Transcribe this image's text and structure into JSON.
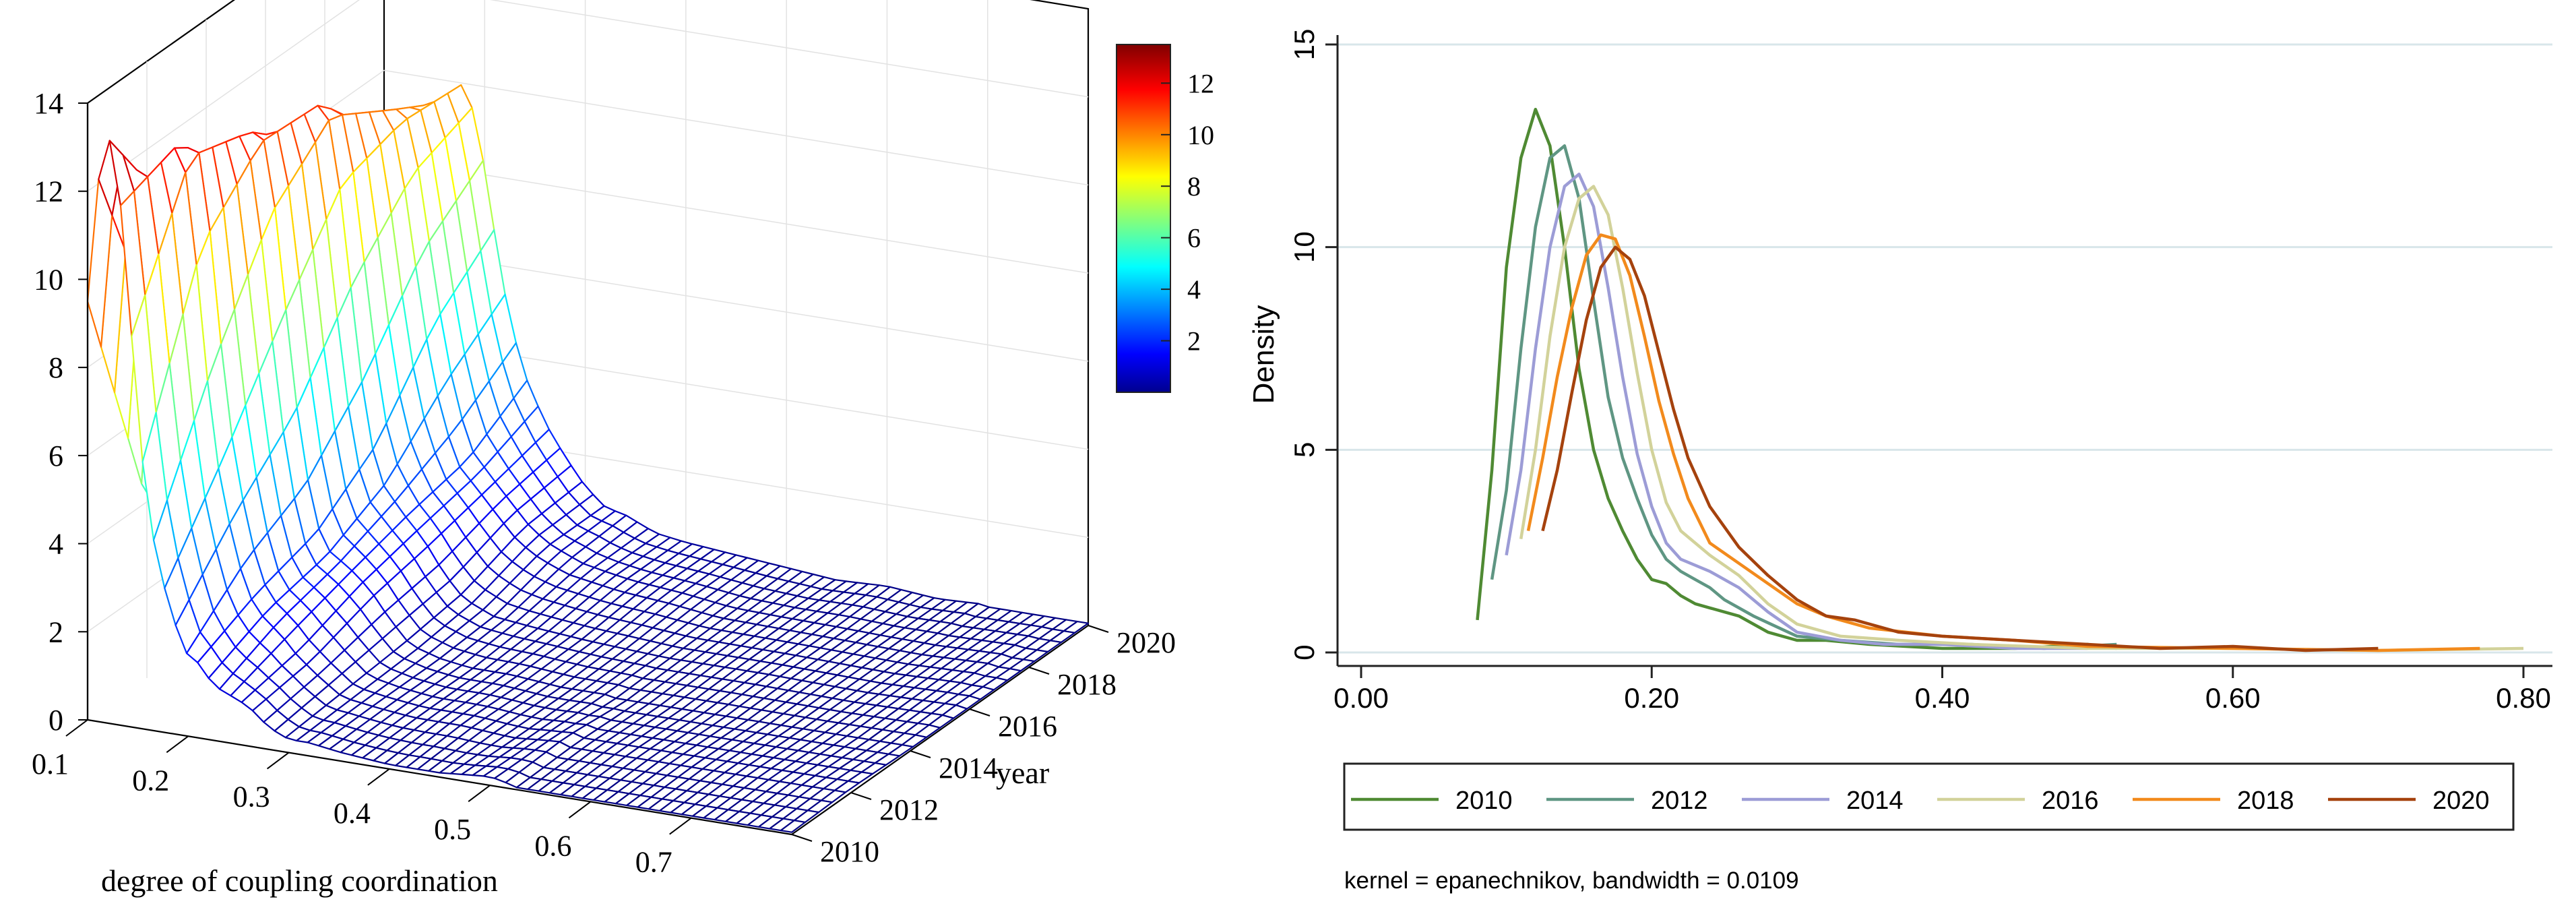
{
  "chart_data": [
    {
      "type": "surface3d",
      "title": "",
      "xlabel": "degree of coupling coordination",
      "ylabel": "year",
      "zlabel": "",
      "x_ticks": [
        "0.1",
        "0.2",
        "0.3",
        "0.4",
        "0.5",
        "0.6",
        "0.7"
      ],
      "y_ticks": [
        "2010",
        "2012",
        "2014",
        "2016",
        "2018",
        "2020"
      ],
      "z_ticks": [
        "0",
        "2",
        "4",
        "6",
        "8",
        "10",
        "12",
        "14"
      ],
      "xlim": [
        0.1,
        0.8
      ],
      "ylim": [
        2010,
        2020
      ],
      "zlim": [
        0,
        14
      ],
      "years": [
        2010,
        2012,
        2014,
        2016,
        2018,
        2020
      ],
      "colorbar": {
        "ticks": [
          "2",
          "4",
          "6",
          "8",
          "10",
          "12"
        ],
        "range": [
          0,
          13.5
        ],
        "colormap": "jet"
      },
      "surface_source": "smoothed kernel densities per year, interpolated between the curves of chart 2"
    },
    {
      "type": "line",
      "title": "",
      "xlabel": "",
      "ylabel": "Density",
      "x_ticks": [
        "0.00",
        "0.20",
        "0.40",
        "0.60",
        "0.80"
      ],
      "y_ticks": [
        "0",
        "5",
        "10",
        "15"
      ],
      "xlim": [
        0,
        0.8
      ],
      "ylim": [
        0,
        15
      ],
      "grid": true,
      "legend_position": "bottom",
      "note": "kernel = epanechnikov, bandwidth = 0.0109",
      "series": [
        {
          "name": "2010",
          "color": "#4f8a33",
          "x": [
            0.08,
            0.09,
            0.1,
            0.11,
            0.12,
            0.13,
            0.14,
            0.15,
            0.16,
            0.17,
            0.18,
            0.19,
            0.2,
            0.21,
            0.22,
            0.23,
            0.24,
            0.26,
            0.28,
            0.3,
            0.32,
            0.35,
            0.4,
            0.45,
            0.5,
            0.52
          ],
          "y": [
            0.8,
            4.5,
            9.5,
            12.2,
            13.4,
            12.5,
            10.0,
            7.0,
            5.0,
            3.8,
            3.0,
            2.3,
            1.8,
            1.7,
            1.4,
            1.2,
            1.1,
            0.9,
            0.5,
            0.3,
            0.3,
            0.2,
            0.1,
            0.1,
            0.2,
            0.1
          ]
        },
        {
          "name": "2012",
          "color": "#5f9683",
          "x": [
            0.09,
            0.1,
            0.11,
            0.12,
            0.13,
            0.14,
            0.15,
            0.16,
            0.17,
            0.18,
            0.19,
            0.2,
            0.21,
            0.22,
            0.23,
            0.24,
            0.25,
            0.27,
            0.3,
            0.33,
            0.37,
            0.42,
            0.47,
            0.52
          ],
          "y": [
            1.8,
            4.0,
            7.5,
            10.5,
            12.2,
            12.5,
            11.2,
            8.7,
            6.3,
            4.8,
            3.8,
            2.9,
            2.3,
            2.0,
            1.8,
            1.6,
            1.3,
            0.9,
            0.4,
            0.3,
            0.2,
            0.2,
            0.1,
            0.2
          ]
        },
        {
          "name": "2014",
          "color": "#9c9cd6",
          "x": [
            0.1,
            0.11,
            0.12,
            0.13,
            0.14,
            0.15,
            0.16,
            0.17,
            0.18,
            0.19,
            0.2,
            0.21,
            0.22,
            0.24,
            0.26,
            0.28,
            0.3,
            0.33,
            0.36,
            0.4,
            0.45,
            0.5
          ],
          "y": [
            2.4,
            4.5,
            7.5,
            10.0,
            11.5,
            11.8,
            11.0,
            9.0,
            6.8,
            4.9,
            3.6,
            2.7,
            2.3,
            2.0,
            1.6,
            1.0,
            0.5,
            0.3,
            0.2,
            0.2,
            0.1,
            0.1
          ]
        },
        {
          "name": "2016",
          "color": "#d2d29a",
          "x": [
            0.11,
            0.12,
            0.13,
            0.14,
            0.15,
            0.16,
            0.17,
            0.18,
            0.19,
            0.2,
            0.21,
            0.22,
            0.24,
            0.26,
            0.28,
            0.3,
            0.33,
            0.37,
            0.42,
            0.5,
            0.6,
            0.7,
            0.8
          ],
          "y": [
            2.8,
            5.0,
            7.8,
            10.0,
            11.2,
            11.5,
            10.8,
            9.0,
            6.9,
            5.0,
            3.7,
            3.0,
            2.4,
            1.9,
            1.2,
            0.7,
            0.4,
            0.3,
            0.2,
            0.1,
            0.1,
            0.05,
            0.1
          ]
        },
        {
          "name": "2018",
          "color": "#f28a1c",
          "x": [
            0.115,
            0.125,
            0.135,
            0.145,
            0.155,
            0.165,
            0.175,
            0.185,
            0.195,
            0.205,
            0.215,
            0.225,
            0.24,
            0.26,
            0.28,
            0.3,
            0.32,
            0.35,
            0.4,
            0.45,
            0.5,
            0.6,
            0.7,
            0.77
          ],
          "y": [
            3.0,
            4.8,
            6.8,
            8.5,
            9.8,
            10.3,
            10.2,
            9.3,
            7.8,
            6.2,
            4.9,
            3.8,
            2.7,
            2.2,
            1.7,
            1.2,
            0.9,
            0.6,
            0.4,
            0.3,
            0.15,
            0.1,
            0.05,
            0.1
          ]
        },
        {
          "name": "2020",
          "color": "#a5420d",
          "x": [
            0.125,
            0.135,
            0.145,
            0.155,
            0.165,
            0.175,
            0.185,
            0.195,
            0.205,
            0.215,
            0.225,
            0.24,
            0.26,
            0.28,
            0.3,
            0.32,
            0.34,
            0.37,
            0.4,
            0.45,
            0.5,
            0.55,
            0.6,
            0.65,
            0.7
          ],
          "y": [
            3.0,
            4.5,
            6.4,
            8.2,
            9.5,
            10.0,
            9.7,
            8.8,
            7.4,
            6.0,
            4.8,
            3.6,
            2.6,
            1.9,
            1.3,
            0.9,
            0.8,
            0.5,
            0.4,
            0.3,
            0.2,
            0.1,
            0.15,
            0.05,
            0.1
          ]
        }
      ]
    }
  ]
}
